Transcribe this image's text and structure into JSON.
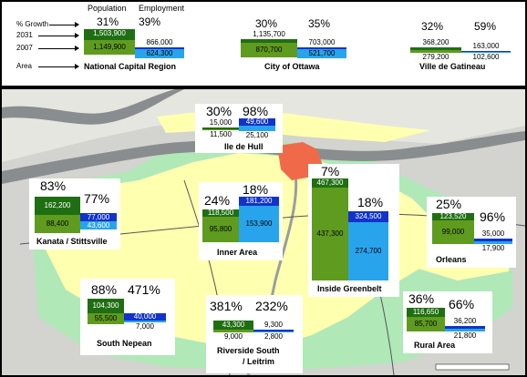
{
  "legend": {
    "population_header": "Population",
    "employment_header": "Employment",
    "key_growth": "% Growth",
    "key_2031": "2031",
    "key_2007": "2007",
    "key_area": "Area"
  },
  "summary": [
    {
      "name": "National Capital Region",
      "pop_pct": "31%",
      "emp_pct": "39%",
      "pop_2031": "1,503,900",
      "pop_2007": "1,149,900",
      "emp_2031": "866,000",
      "emp_2007": "624,300"
    },
    {
      "name": "City of Ottawa",
      "pop_pct": "30%",
      "emp_pct": "35%",
      "pop_2031": "1,135,700",
      "pop_2007": "870,700",
      "emp_2031": "703,000",
      "emp_2007": "521,700"
    },
    {
      "name": "Ville de Gatineau",
      "pop_pct": "32%",
      "emp_pct": "59%",
      "pop_2031": "368,200",
      "pop_2007": "279,200",
      "emp_2031": "163,000",
      "emp_2007": "102,600"
    }
  ],
  "areas": {
    "hull": {
      "name": "Ile de Hull",
      "pop_pct": "30%",
      "emp_pct": "98%",
      "pop_2031": "15,000",
      "pop_2007": "11,500",
      "emp_2031": "49,600",
      "emp_2007": "25,100"
    },
    "kanata": {
      "name": "Kanata / Stittsville",
      "pop_pct": "83%",
      "emp_pct": "77%",
      "pop_2031": "162,200",
      "pop_2007": "88,400",
      "emp_2031": "77,000",
      "emp_2007": "43,600"
    },
    "inner": {
      "name": "Inner Area",
      "pop_pct": "24%",
      "emp_pct": "18%",
      "pop_2031": "118,500",
      "pop_2007": "95,800",
      "emp_2031": "181,200",
      "emp_2007": "153,900"
    },
    "greenbelt": {
      "name": "Inside Greenbelt",
      "pop_pct": "7%",
      "emp_pct": "18%",
      "pop_2031": "467,300",
      "pop_2007": "437,300",
      "emp_2031": "324,500",
      "emp_2007": "274,700"
    },
    "orleans": {
      "name": "Orleans",
      "pop_pct": "25%",
      "emp_pct": "96%",
      "pop_2031": "123,520",
      "pop_2007": "99,000",
      "emp_2031": "35,000",
      "emp_2007": "17,900"
    },
    "nepean": {
      "name": "South Nepean",
      "pop_pct": "88%",
      "emp_pct": "471%",
      "pop_2031": "104,300",
      "pop_2007": "55,500",
      "emp_2031": "40,000",
      "emp_2007": "7,000"
    },
    "riverside": {
      "name_line1": "Riverside South",
      "name_line2": "/ Leitrim",
      "pop_pct": "381%",
      "emp_pct": "232%",
      "pop_2031": "43,300",
      "pop_2007": "9,000",
      "emp_2031": "9,300",
      "emp_2007": "2,800"
    },
    "rural": {
      "name": "Rural Area",
      "pop_pct": "36%",
      "emp_pct": "66%",
      "pop_2031": "116,650",
      "pop_2007": "85,700",
      "emp_2031": "36,200",
      "emp_2007": "21,800"
    }
  },
  "colors": {
    "pop_2031": "#1f6f12",
    "pop_2007": "#5f9b1e",
    "emp_2031": "#1133cc",
    "emp_2007": "#28a4ec",
    "urban": "#ffffb0",
    "greenbelt": "#b0e8b8",
    "downtown": "#f06a4a",
    "river": "#8a8d8f"
  }
}
